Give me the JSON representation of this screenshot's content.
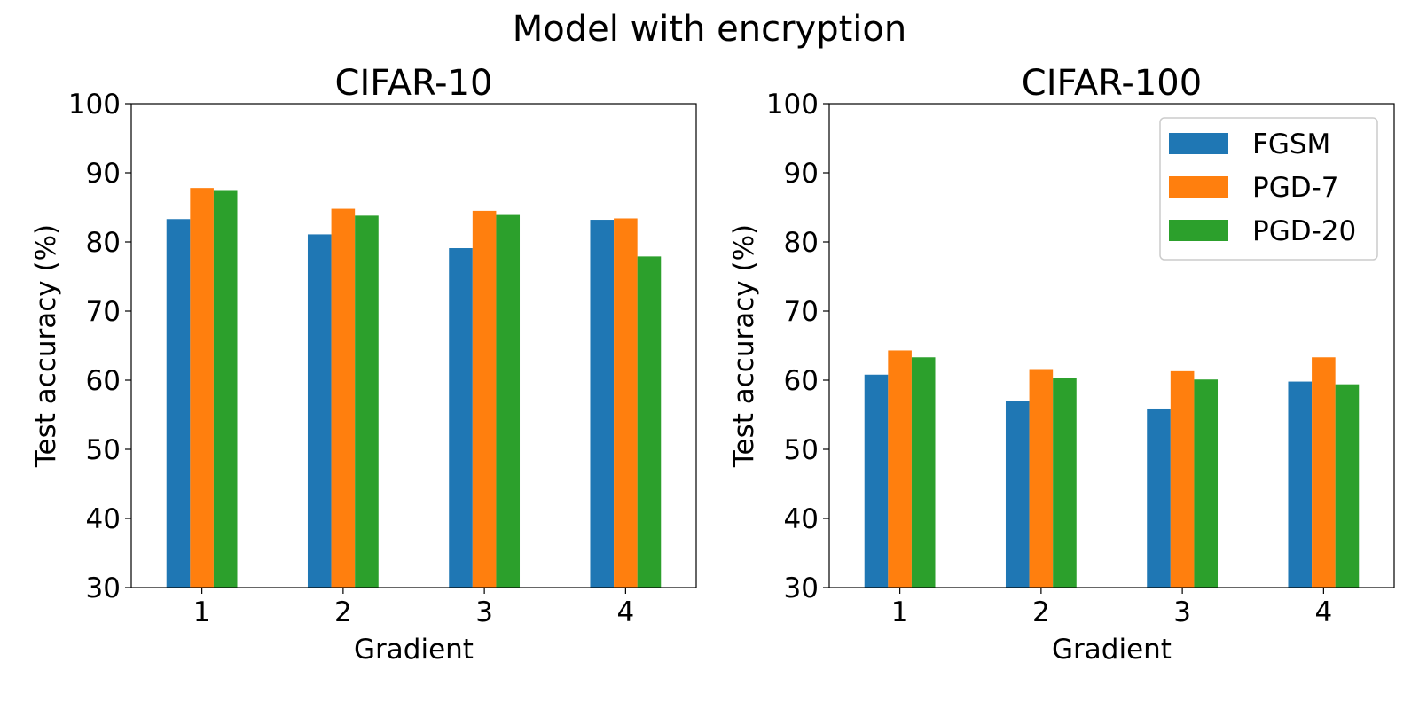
{
  "figure": {
    "suptitle": "Model with encryption"
  },
  "legend": {
    "placement": "upper-right of second panel",
    "entries": [
      "FGSM",
      "PGD-7",
      "PGD-20"
    ]
  },
  "colors": {
    "FGSM": "#1f77b4",
    "PGD-7": "#ff7f0e",
    "PGD-20": "#2ca02c"
  },
  "chart_data": [
    {
      "type": "bar",
      "title": "CIFAR-10",
      "xlabel": "Gradient",
      "ylabel": "Test accuracy (%)",
      "categories": [
        "1",
        "2",
        "3",
        "4"
      ],
      "ylim": [
        30,
        100
      ],
      "yticks": [
        30,
        40,
        50,
        60,
        70,
        80,
        90,
        100
      ],
      "grid": false,
      "series": [
        {
          "name": "FGSM",
          "values": [
            83.3,
            81.1,
            79.1,
            83.2
          ]
        },
        {
          "name": "PGD-7",
          "values": [
            87.8,
            84.8,
            84.5,
            83.4
          ]
        },
        {
          "name": "PGD-20",
          "values": [
            87.5,
            83.8,
            83.9,
            77.9
          ]
        }
      ]
    },
    {
      "type": "bar",
      "title": "CIFAR-100",
      "xlabel": "Gradient",
      "ylabel": "Test accuracy (%)",
      "categories": [
        "1",
        "2",
        "3",
        "4"
      ],
      "ylim": [
        30,
        100
      ],
      "yticks": [
        30,
        40,
        50,
        60,
        70,
        80,
        90,
        100
      ],
      "grid": false,
      "series": [
        {
          "name": "FGSM",
          "values": [
            60.8,
            57.0,
            55.9,
            59.8
          ]
        },
        {
          "name": "PGD-7",
          "values": [
            64.3,
            61.6,
            61.3,
            63.3
          ]
        },
        {
          "name": "PGD-20",
          "values": [
            63.3,
            60.3,
            60.1,
            59.4
          ]
        }
      ]
    }
  ]
}
